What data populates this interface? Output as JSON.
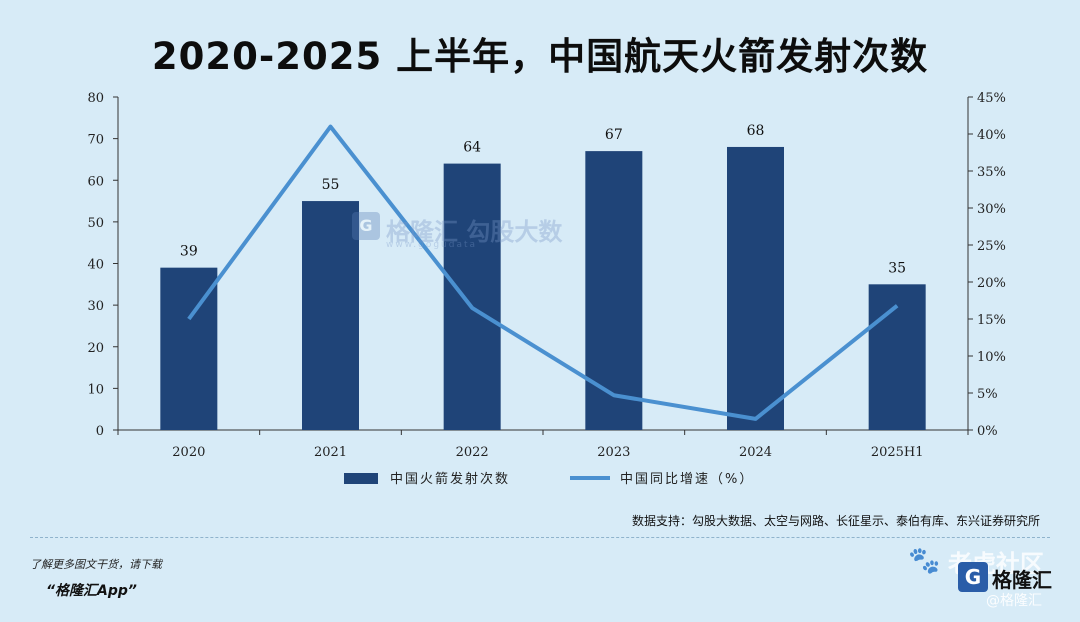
{
  "title": "2020-2025 上半年，中国航天火箭发射次数",
  "chart_data": {
    "type": "bar",
    "categories": [
      "2020",
      "2021",
      "2022",
      "2023",
      "2024",
      "2025H1"
    ],
    "series": [
      {
        "name": "中国火箭发射次数",
        "type": "bar",
        "axis": "left",
        "values": [
          39,
          55,
          64,
          67,
          68,
          35
        ],
        "color": "#1f4478"
      },
      {
        "name": "中国同比增速（%）",
        "type": "line",
        "axis": "right",
        "values": [
          15,
          41,
          16.5,
          4.7,
          1.5,
          16.8
        ],
        "color": "#4a90d0"
      }
    ],
    "y_left": {
      "min": 0,
      "max": 80,
      "ticks": [
        "0",
        "10",
        "20",
        "30",
        "40",
        "50",
        "60",
        "70",
        "80"
      ]
    },
    "y_right": {
      "min": 0,
      "max": 45,
      "ticks": [
        "0%",
        "5%",
        "10%",
        "15%",
        "20%",
        "25%",
        "30%",
        "35%",
        "40%",
        "45%"
      ]
    },
    "bar_labels": [
      "39",
      "55",
      "64",
      "67",
      "68",
      "35"
    ],
    "legend": {
      "placement": "bottom-center"
    },
    "grid": false
  },
  "source": "数据支持：勾股大数据、太空与网路、长征星示、泰伯有库、东兴证券研究所",
  "promo": {
    "line1": "了解更多图文干货，请下载",
    "line2": "“格隆汇App”"
  },
  "watermarks": {
    "center_brand": "格隆汇",
    "center_extra": "勾股大数",
    "center_url": "www.gogudata",
    "corner_forum": "老虎社区",
    "corner_brand": "格隆汇",
    "corner_handle": "@格隆汇",
    "logo_letter": "G",
    "paw_icon": "paw-icon"
  }
}
